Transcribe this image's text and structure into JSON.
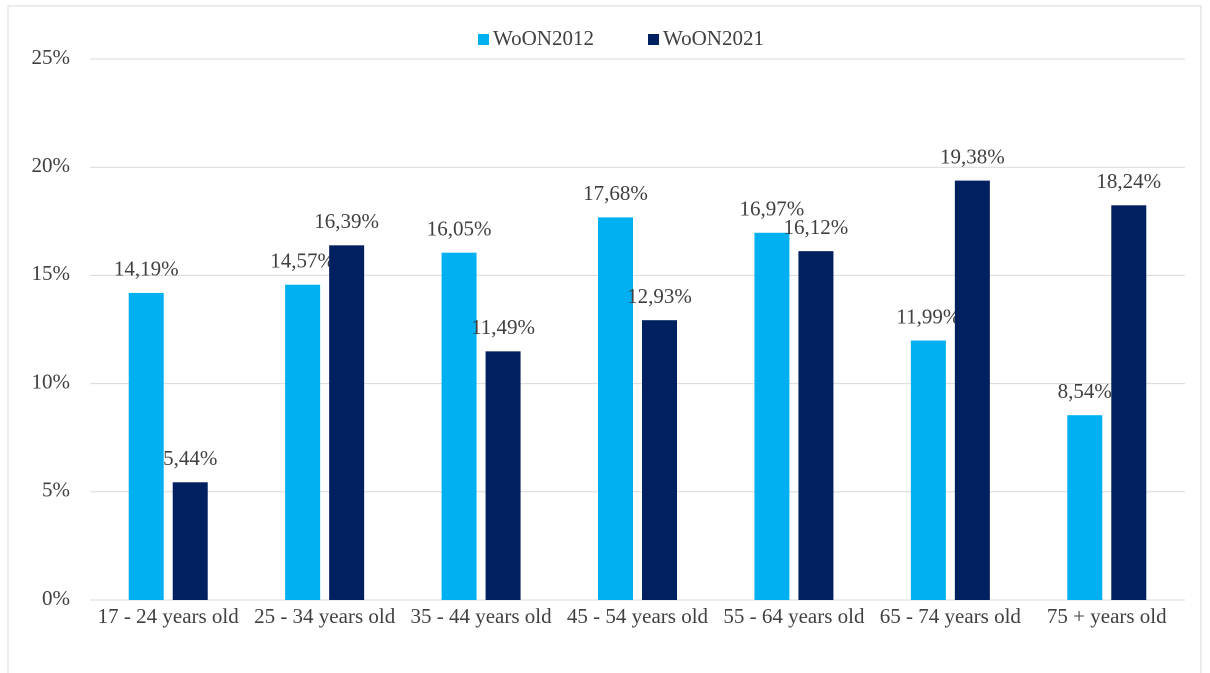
{
  "chart_data": {
    "type": "bar",
    "categories": [
      "17 - 24 years old",
      "25 - 34 years old",
      "35 - 44 years old",
      "45 - 54 years old",
      "55 - 64 years old",
      "65 - 74 years old",
      "75 + years old"
    ],
    "series": [
      {
        "name": "WoON2012",
        "color": "#00b0f0",
        "values": [
          14.19,
          14.57,
          16.05,
          17.68,
          16.97,
          11.99,
          8.54
        ],
        "value_labels": [
          "14,19%",
          "14,57%",
          "16,05%",
          "17,68%",
          "16,97%",
          "11,99%",
          "8,54%"
        ]
      },
      {
        "name": "WoON2021",
        "color": "#002060",
        "values": [
          5.44,
          16.39,
          11.49,
          12.93,
          16.12,
          19.38,
          18.24
        ],
        "value_labels": [
          "5,44%",
          "16,39%",
          "11,49%",
          "12,93%",
          "16,12%",
          "19,38%",
          "18,24%"
        ]
      }
    ],
    "ylim": [
      0,
      25
    ],
    "yticks": [
      {
        "value": 0,
        "label": "0%"
      },
      {
        "value": 5,
        "label": "5%"
      },
      {
        "value": 10,
        "label": "10%"
      },
      {
        "value": 15,
        "label": "15%"
      },
      {
        "value": 20,
        "label": "20%"
      },
      {
        "value": 25,
        "label": "25%"
      }
    ],
    "grid": true,
    "legend": "top"
  }
}
